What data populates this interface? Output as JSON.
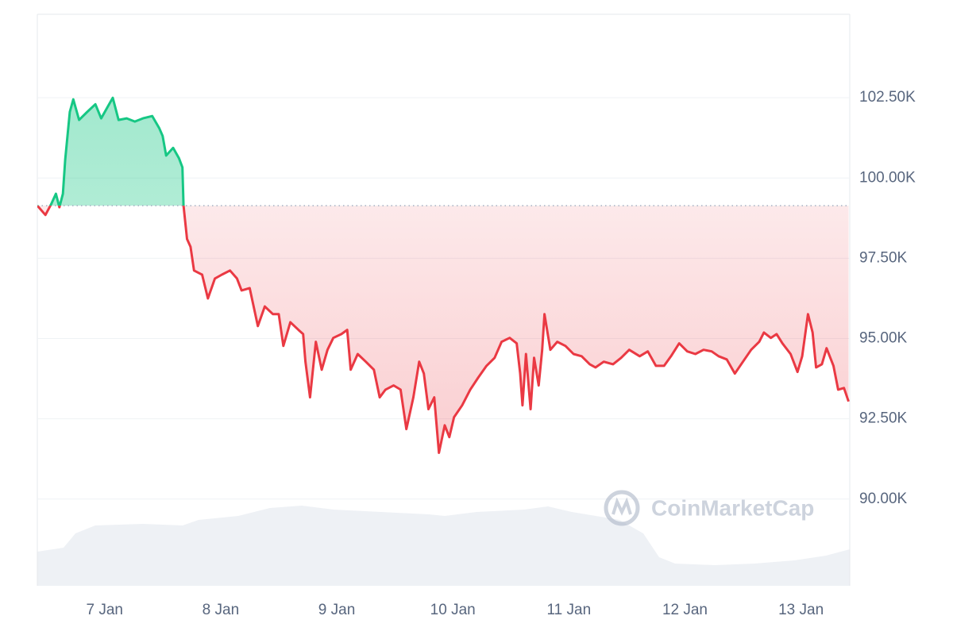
{
  "chart_data": {
    "type": "line",
    "x": [
      -0.58,
      -0.51,
      -0.46,
      -0.42,
      -0.39,
      -0.36,
      -0.34,
      -0.3,
      -0.27,
      -0.22,
      -0.15,
      -0.08,
      -0.03,
      0.02,
      0.07,
      0.12,
      0.19,
      0.26,
      0.33,
      0.41,
      0.47,
      0.5,
      0.53,
      0.59,
      0.64,
      0.67,
      0.68,
      0.71,
      0.74,
      0.77,
      0.84,
      0.89,
      0.95,
      1.01,
      1.08,
      1.14,
      1.18,
      1.25,
      1.32,
      1.38,
      1.45,
      1.5,
      1.54,
      1.6,
      1.67,
      1.71,
      1.73,
      1.77,
      1.82,
      1.87,
      1.92,
      1.97,
      2.04,
      2.09,
      2.12,
      2.18,
      2.25,
      2.32,
      2.37,
      2.42,
      2.49,
      2.55,
      2.6,
      2.66,
      2.71,
      2.75,
      2.79,
      2.84,
      2.88,
      2.93,
      2.97,
      3.01,
      3.08,
      3.15,
      3.22,
      3.29,
      3.36,
      3.42,
      3.49,
      3.55,
      3.58,
      3.6,
      3.63,
      3.67,
      3.7,
      3.74,
      3.77,
      3.79,
      3.84,
      3.9,
      3.97,
      4.04,
      4.11,
      4.18,
      4.23,
      4.3,
      4.38,
      4.45,
      4.52,
      4.61,
      4.68,
      4.75,
      4.82,
      4.88,
      4.95,
      5.02,
      5.09,
      5.16,
      5.23,
      5.29,
      5.36,
      5.43,
      5.5,
      5.57,
      5.64,
      5.68,
      5.74,
      5.79,
      5.84,
      5.91,
      5.97,
      6.01,
      6.06,
      6.1,
      6.13,
      6.18,
      6.22,
      6.28,
      6.32,
      6.37,
      6.41
    ],
    "values": [
      99140,
      98850,
      99190,
      99510,
      99090,
      99510,
      100570,
      102060,
      102450,
      101810,
      102060,
      102300,
      101860,
      102180,
      102500,
      101810,
      101860,
      101760,
      101860,
      101930,
      101560,
      101310,
      100700,
      100940,
      100620,
      100330,
      99140,
      98100,
      97860,
      97120,
      96990,
      96250,
      96870,
      96990,
      97120,
      96870,
      96500,
      96570,
      95390,
      96000,
      95760,
      95760,
      94770,
      95510,
      95270,
      95140,
      94280,
      93170,
      94900,
      94030,
      94650,
      95020,
      95140,
      95270,
      94030,
      94520,
      94280,
      94030,
      93170,
      93410,
      93540,
      93410,
      92180,
      93170,
      94280,
      93910,
      92800,
      93170,
      91440,
      92300,
      91930,
      92550,
      92920,
      93410,
      93790,
      94150,
      94400,
      94900,
      95020,
      94850,
      93910,
      92920,
      94520,
      92800,
      94400,
      93540,
      94650,
      95760,
      94650,
      94900,
      94770,
      94520,
      94450,
      94200,
      94100,
      94280,
      94200,
      94400,
      94650,
      94450,
      94600,
      94150,
      94150,
      94450,
      94850,
      94600,
      94520,
      94650,
      94600,
      94450,
      94350,
      93910,
      94280,
      94650,
      94900,
      95190,
      95020,
      95140,
      94850,
      94520,
      93960,
      94450,
      95760,
      95190,
      94100,
      94200,
      94700,
      94150,
      93410,
      93460,
      93040
    ],
    "baseline": 99140,
    "up_color": "#16c784",
    "down_color": "#ea3943",
    "xlim": [
      -0.58,
      6.42
    ],
    "xticks": [
      {
        "value": 0,
        "label": "7 Jan"
      },
      {
        "value": 1,
        "label": "8 Jan"
      },
      {
        "value": 2,
        "label": "9 Jan"
      },
      {
        "value": 3,
        "label": "10 Jan"
      },
      {
        "value": 4,
        "label": "11 Jan"
      },
      {
        "value": 5,
        "label": "12 Jan"
      },
      {
        "value": 6,
        "label": "13 Jan"
      }
    ],
    "ylim": [
      87300,
      105100
    ],
    "yticks": [
      {
        "value": 90000,
        "label": "90.00K"
      },
      {
        "value": 92500,
        "label": "92.50K"
      },
      {
        "value": 95000,
        "label": "95.00K"
      },
      {
        "value": 97500,
        "label": "97.50K"
      },
      {
        "value": 100000,
        "label": "100.00K"
      },
      {
        "value": 102500,
        "label": "102.50K"
      }
    ],
    "grid": true,
    "watermark": "CoinMarketCap"
  }
}
